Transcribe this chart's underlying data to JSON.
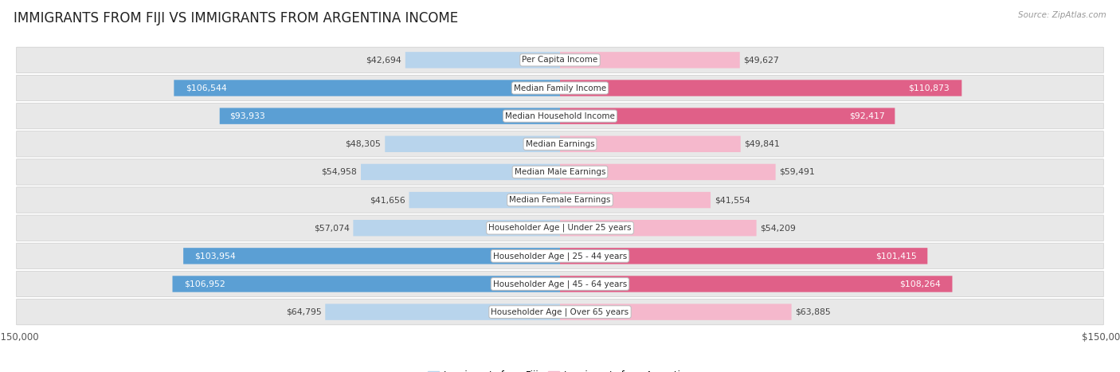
{
  "title": "IMMIGRANTS FROM FIJI VS IMMIGRANTS FROM ARGENTINA INCOME",
  "source": "Source: ZipAtlas.com",
  "categories": [
    "Per Capita Income",
    "Median Family Income",
    "Median Household Income",
    "Median Earnings",
    "Median Male Earnings",
    "Median Female Earnings",
    "Householder Age | Under 25 years",
    "Householder Age | 25 - 44 years",
    "Householder Age | 45 - 64 years",
    "Householder Age | Over 65 years"
  ],
  "fiji_values": [
    42694,
    106544,
    93933,
    48305,
    54958,
    41656,
    57074,
    103954,
    106952,
    64795
  ],
  "argentina_values": [
    49627,
    110873,
    92417,
    49841,
    59491,
    41554,
    54209,
    101415,
    108264,
    63885
  ],
  "fiji_labels": [
    "$42,694",
    "$106,544",
    "$93,933",
    "$48,305",
    "$54,958",
    "$41,656",
    "$57,074",
    "$103,954",
    "$106,952",
    "$64,795"
  ],
  "argentina_labels": [
    "$49,627",
    "$110,873",
    "$92,417",
    "$49,841",
    "$59,491",
    "$41,554",
    "$54,209",
    "$101,415",
    "$108,264",
    "$63,885"
  ],
  "fiji_color_light": "#b8d4ec",
  "fiji_color_dark": "#5b9fd4",
  "argentina_color_light": "#f5b8cc",
  "argentina_color_dark": "#e06088",
  "max_value": 150000,
  "bar_height": 0.58,
  "row_bg_color": "#e8e8e8",
  "title_fontsize": 12,
  "label_fontsize": 7.8,
  "category_fontsize": 7.5,
  "threshold": 70000
}
